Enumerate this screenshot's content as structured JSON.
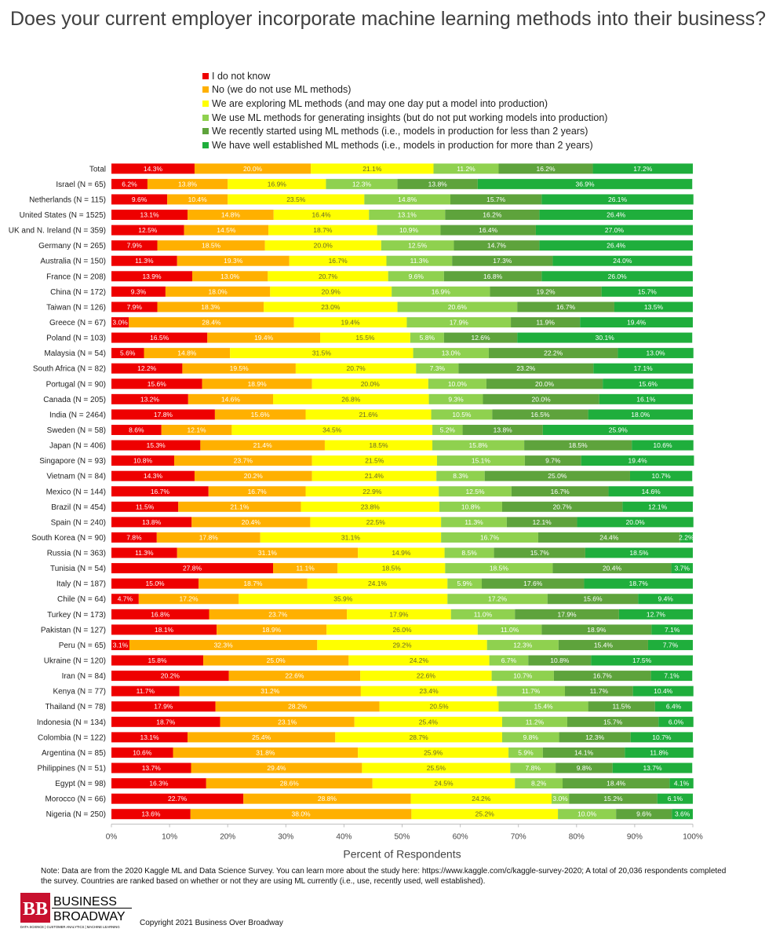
{
  "chart_data": {
    "type": "bar",
    "orientation": "horizontal",
    "stacked": true,
    "title": "Does your current employer incorporate machine learning methods into their business?",
    "xlabel": "Percent of Respondents",
    "ylabel": "",
    "xlim": [
      0,
      100
    ],
    "x_ticks": [
      "0%",
      "10%",
      "20%",
      "30%",
      "40%",
      "50%",
      "60%",
      "70%",
      "80%",
      "90%",
      "100%"
    ],
    "grid": false,
    "legend_position": "top",
    "categories": [
      "Total",
      "Israel (N = 65)",
      "Netherlands (N = 115)",
      "United States (N = 1525)",
      "UK and N. Ireland (N = 359)",
      "Germany (N = 265)",
      "Australia (N = 150)",
      "France (N = 208)",
      "China (N = 172)",
      "Taiwan (N = 126)",
      "Greece (N = 67)",
      "Poland (N = 103)",
      "Malaysia (N = 54)",
      "South Africa (N = 82)",
      "Portugal (N = 90)",
      "Canada (N = 205)",
      "India (N = 2464)",
      "Sweden (N = 58)",
      "Japan (N = 406)",
      "Singapore (N = 93)",
      "Vietnam (N = 84)",
      "Mexico (N = 144)",
      "Brazil (N = 454)",
      "Spain (N = 240)",
      "South Korea (N = 90)",
      "Russia (N = 363)",
      "Tunisia (N = 54)",
      "Italy (N = 187)",
      "Chile (N = 64)",
      "Turkey (N = 173)",
      "Pakistan (N = 127)",
      "Peru (N = 65)",
      "Ukraine (N = 120)",
      "Iran (N = 84)",
      "Kenya (N = 77)",
      "Thailand (N = 78)",
      "Indonesia (N = 134)",
      "Colombia (N = 122)",
      "Argentina (N = 85)",
      "Philippines (N = 51)",
      "Egypt (N = 98)",
      "Morocco (N = 66)",
      "Nigeria (N = 250)"
    ],
    "series": [
      {
        "name": "I do not know",
        "color": "#ee0000",
        "values": [
          14.3,
          6.2,
          9.6,
          13.1,
          12.5,
          7.9,
          11.3,
          13.9,
          9.3,
          7.9,
          3.0,
          16.5,
          5.6,
          12.2,
          15.6,
          13.2,
          17.8,
          8.6,
          15.3,
          10.8,
          14.3,
          16.7,
          11.5,
          13.8,
          7.8,
          11.3,
          27.8,
          15.0,
          4.7,
          16.8,
          18.1,
          3.1,
          15.8,
          20.2,
          11.7,
          17.9,
          18.7,
          13.1,
          10.6,
          13.7,
          16.3,
          22.7,
          13.6
        ]
      },
      {
        "name": "No (we do not use ML methods)",
        "color": "#ffb000",
        "values": [
          20.0,
          13.8,
          10.4,
          14.8,
          14.5,
          18.5,
          19.3,
          13.0,
          18.0,
          18.3,
          28.4,
          19.4,
          14.8,
          19.5,
          18.9,
          14.6,
          15.6,
          12.1,
          21.4,
          23.7,
          20.2,
          16.7,
          21.1,
          20.4,
          17.8,
          31.1,
          11.1,
          18.7,
          17.2,
          23.7,
          18.9,
          32.3,
          25.0,
          22.6,
          31.2,
          28.2,
          23.1,
          25.4,
          31.8,
          29.4,
          28.6,
          28.8,
          38.0
        ]
      },
      {
        "name": "We are exploring ML methods (and may one day put a model into production)",
        "color": "#ffff00",
        "values": [
          21.1,
          16.9,
          23.5,
          16.4,
          18.7,
          20.0,
          16.7,
          20.7,
          20.9,
          23.0,
          19.4,
          15.5,
          31.5,
          20.7,
          20.0,
          26.8,
          21.6,
          34.5,
          18.5,
          21.5,
          21.4,
          22.9,
          23.8,
          22.5,
          31.1,
          14.9,
          18.5,
          24.1,
          35.9,
          17.9,
          26.0,
          29.2,
          24.2,
          22.6,
          23.4,
          20.5,
          25.4,
          28.7,
          25.9,
          25.5,
          24.5,
          24.2,
          25.2
        ]
      },
      {
        "name": "We use ML methods for generating insights (but do not put working models into production)",
        "color": "#8fd14f",
        "values": [
          11.2,
          12.3,
          14.8,
          13.1,
          10.9,
          12.5,
          11.3,
          9.6,
          16.9,
          20.6,
          17.9,
          5.8,
          13.0,
          7.3,
          10.0,
          9.3,
          10.5,
          5.2,
          15.8,
          15.1,
          8.3,
          12.5,
          10.8,
          11.3,
          16.7,
          8.5,
          18.5,
          5.9,
          17.2,
          11.0,
          11.0,
          12.3,
          6.7,
          10.7,
          11.7,
          15.4,
          11.2,
          9.8,
          5.9,
          7.8,
          8.2,
          3.0,
          10.0
        ]
      },
      {
        "name": "We recently started using ML methods (i.e., models in production for less than 2 years)",
        "color": "#5ea33c",
        "values": [
          16.2,
          13.8,
          15.7,
          16.2,
          16.4,
          14.7,
          17.3,
          16.8,
          19.2,
          16.7,
          11.9,
          12.6,
          22.2,
          23.2,
          20.0,
          20.0,
          16.5,
          13.8,
          18.5,
          9.7,
          25.0,
          16.7,
          20.7,
          12.1,
          24.4,
          15.7,
          20.4,
          17.6,
          15.6,
          17.9,
          18.9,
          15.4,
          10.8,
          16.7,
          11.7,
          11.5,
          15.7,
          12.3,
          14.1,
          9.8,
          18.4,
          15.2,
          9.6
        ]
      },
      {
        "name": "We have well established ML methods (i.e., models in production for more than 2 years)",
        "color": "#1fae3c",
        "values": [
          17.2,
          36.9,
          26.1,
          26.4,
          27.0,
          26.4,
          24.0,
          26.0,
          15.7,
          13.5,
          19.4,
          30.1,
          13.0,
          17.1,
          15.6,
          16.1,
          18.0,
          25.9,
          10.6,
          19.4,
          10.7,
          14.6,
          12.1,
          20.0,
          2.2,
          18.5,
          3.7,
          18.7,
          9.4,
          12.7,
          7.1,
          7.7,
          17.5,
          7.1,
          10.4,
          6.4,
          6.0,
          10.7,
          11.8,
          13.7,
          4.1,
          6.1,
          3.6
        ]
      }
    ]
  },
  "note": "Note: Data are from the 2020 Kaggle ML and Data Science Survey. You can learn more about the study here: https://www.kaggle.com/c/kaggle-survey-2020; A total of 20,036 respondents completed the survey. Countries are ranked based on whether or not they are using ML currently (i.e., use, recently used, well established).",
  "logo": {
    "initials": "BB",
    "line1": "BUSINESS",
    "line2": "BROADWAY",
    "tagline": "DATA SCIENCE | CUSTOMER ANALYTICS | MACHINE LEARNING",
    "color": "#c8102e"
  },
  "copyright": "Copyright 2021 Business Over Broadway"
}
